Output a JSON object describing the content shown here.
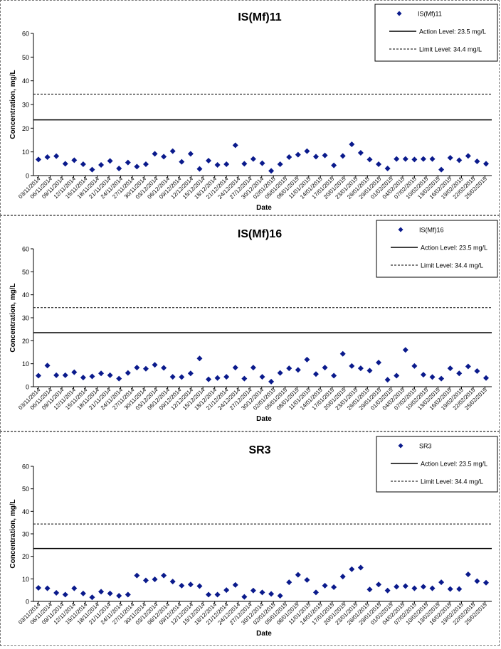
{
  "chart_data": [
    {
      "type": "scatter",
      "title": "IS(Mf)11",
      "xlabel": "Date",
      "ylabel": "Concentration, mg/L",
      "ylim": [
        0,
        60
      ],
      "yticks": [
        0,
        10,
        20,
        30,
        40,
        50,
        60
      ],
      "grid": false,
      "legend_position": "top-right",
      "legend": {
        "series": "IS(Mf)11",
        "action": "Action Level: 23.5 mg/L",
        "limit": "Limit Level: 34.4 mg/L"
      },
      "action_level": 23.5,
      "limit_level": 34.4,
      "xtick_labels": [
        "03/11/2014",
        "06/11/2014",
        "09/11/2014",
        "12/11/2014",
        "15/11/2014",
        "18/11/2014",
        "21/11/2014",
        "24/11/2014",
        "27/11/2014",
        "30/11/2014",
        "03/12/2014",
        "06/12/2014",
        "09/12/2014",
        "12/12/2014",
        "15/12/2014",
        "18/12/2014",
        "21/12/2014",
        "24/12/2014",
        "27/12/2014",
        "30/12/2014",
        "02/01/2015",
        "05/01/2015",
        "08/01/2015",
        "11/01/2015",
        "14/01/2015",
        "17/01/2015",
        "20/01/2015",
        "23/01/2015",
        "26/01/2015",
        "29/01/2015",
        "01/02/2015",
        "04/02/2015",
        "07/02/2015",
        "10/02/2015",
        "13/02/2015",
        "16/02/2015",
        "19/02/2015",
        "22/02/2015",
        "25/02/2015"
      ],
      "values": [
        6.8,
        7.8,
        8.2,
        5.0,
        6.5,
        4.8,
        2.5,
        4.5,
        6.2,
        3.0,
        5.5,
        3.8,
        4.8,
        9.2,
        8.0,
        10.3,
        5.8,
        9.2,
        2.8,
        6.3,
        4.5,
        4.8,
        12.8,
        5.0,
        7.0,
        5.2,
        2.0,
        4.8,
        7.8,
        8.8,
        10.3,
        8.0,
        8.5,
        4.3,
        8.3,
        13.2,
        9.6,
        6.8,
        4.8,
        3.0,
        7.0,
        7.0,
        6.8,
        7.0,
        7.0,
        2.5,
        7.5,
        6.5,
        8.3,
        6.0,
        5.0
      ]
    },
    {
      "type": "scatter",
      "title": "IS(Mf)16",
      "xlabel": "Date",
      "ylabel": "Concentration, mg/L",
      "ylim": [
        0,
        60
      ],
      "yticks": [
        0,
        10,
        20,
        30,
        40,
        50,
        60
      ],
      "grid": false,
      "legend_position": "top-right",
      "legend": {
        "series": "IS(Mf)16",
        "action": "Action Level: 23.5 mg/L",
        "limit": "Limit Level: 34.4 mg/L"
      },
      "action_level": 23.5,
      "limit_level": 34.4,
      "xtick_labels": [
        "03/11/2014",
        "06/11/2014",
        "09/11/2014",
        "12/11/2014",
        "15/11/2014",
        "18/11/2014",
        "21/11/2014",
        "24/11/2014",
        "27/11/2014",
        "30/11/2014",
        "03/12/2014",
        "06/12/2014",
        "09/12/2014",
        "12/12/2014",
        "15/12/2014",
        "18/12/2014",
        "21/12/2014",
        "24/12/2014",
        "27/12/2014",
        "30/12/2014",
        "02/01/2015",
        "05/01/2015",
        "08/01/2015",
        "11/01/2015",
        "14/01/2015",
        "17/01/2015",
        "20/01/2015",
        "23/01/2015",
        "26/01/2015",
        "29/01/2015",
        "01/02/2015",
        "04/02/2015",
        "07/02/2015",
        "10/02/2015",
        "13/02/2015",
        "16/02/2015",
        "19/02/2015",
        "22/02/2015",
        "25/02/2015"
      ],
      "values": [
        4.8,
        9.2,
        5.0,
        5.0,
        6.3,
        4.0,
        4.5,
        5.8,
        5.0,
        3.5,
        6.0,
        8.3,
        7.8,
        9.5,
        8.2,
        4.3,
        4.2,
        5.8,
        12.3,
        3.2,
        3.8,
        4.3,
        8.3,
        3.5,
        8.3,
        4.3,
        2.2,
        6.0,
        8.0,
        7.3,
        11.8,
        5.5,
        8.3,
        4.8,
        14.3,
        9.0,
        8.0,
        7.0,
        10.5,
        3.0,
        4.8,
        16.0,
        9.0,
        5.2,
        4.2,
        3.5,
        8.0,
        5.8,
        8.8,
        6.8,
        3.8
      ]
    },
    {
      "type": "scatter",
      "title": "SR3",
      "xlabel": "Date",
      "ylabel": "Concentration, mg/L",
      "ylim": [
        0,
        60
      ],
      "yticks": [
        0,
        10,
        20,
        30,
        40,
        50,
        60
      ],
      "grid": false,
      "legend_position": "top-right",
      "legend": {
        "series": "SR3",
        "action": "Action Level: 23.5 mg/L",
        "limit": "Limit Level: 34.4 mg/L"
      },
      "action_level": 23.5,
      "limit_level": 34.4,
      "xtick_labels": [
        "03/11/2014",
        "06/11/2014",
        "09/11/2014",
        "12/11/2014",
        "15/11/2014",
        "18/11/2014",
        "21/11/2014",
        "24/11/2014",
        "27/11/2014",
        "30/11/2014",
        "03/12/2014",
        "06/12/2014",
        "09/12/2014",
        "12/12/2014",
        "15/12/2014",
        "18/12/2014",
        "21/12/2014",
        "24/12/2014",
        "27/12/2014",
        "30/12/2014",
        "02/01/2015",
        "05/01/2015",
        "08/01/2015",
        "11/01/2015",
        "14/01/2015",
        "17/01/2015",
        "20/01/2015",
        "23/01/2015",
        "26/01/2015",
        "29/01/2015",
        "01/02/2015",
        "04/02/2015",
        "07/02/2015",
        "10/02/2015",
        "13/02/2015",
        "16/02/2015",
        "19/02/2015",
        "22/02/2015",
        "25/02/2015"
      ],
      "values": [
        6.0,
        5.8,
        3.8,
        3.0,
        5.8,
        3.5,
        1.8,
        4.3,
        3.5,
        2.5,
        3.0,
        11.5,
        9.3,
        9.8,
        11.5,
        8.8,
        7.0,
        7.5,
        6.8,
        3.0,
        3.0,
        5.0,
        7.3,
        2.0,
        4.8,
        4.0,
        3.3,
        2.5,
        8.5,
        11.8,
        9.5,
        4.0,
        7.0,
        6.3,
        11.0,
        14.3,
        15.0,
        5.3,
        7.5,
        4.8,
        6.5,
        6.8,
        5.8,
        6.5,
        5.8,
        8.5,
        5.5,
        5.5,
        12.0,
        9.0,
        8.3
      ]
    }
  ]
}
